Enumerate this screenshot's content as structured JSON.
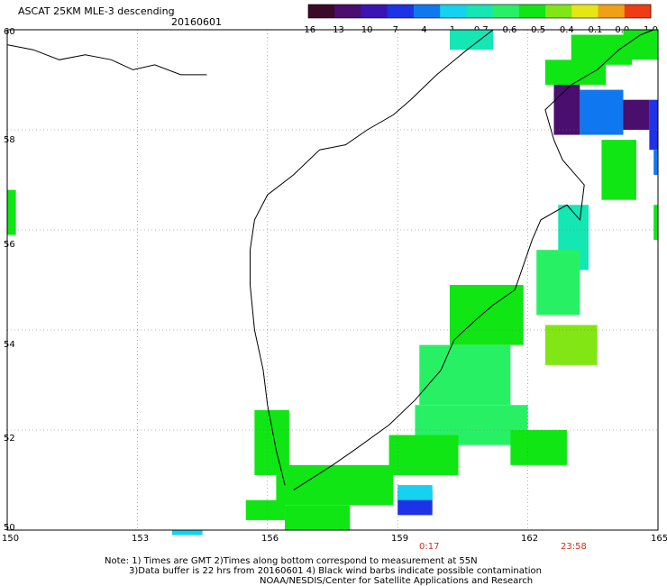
{
  "header": {
    "title": "ASCAT 25KM MLE-3 descending",
    "date": "20160601"
  },
  "colorbar": {
    "ticks": [
      "-16",
      "-13",
      "-10",
      "-7",
      "-4",
      "-1",
      "-0.7",
      "-0.6",
      "-0.5",
      "-0.4",
      "-0.1",
      "0.0",
      "1.0"
    ],
    "colors": [
      "#3c0a28",
      "#4a0e6e",
      "#3c14b4",
      "#1e32e6",
      "#0f78f0",
      "#14d2f0",
      "#14e6b4",
      "#28f064",
      "#0fe614",
      "#82e614",
      "#e6e614",
      "#f0a014",
      "#f03c14"
    ]
  },
  "map": {
    "y_ticks": [
      "60",
      "58",
      "56",
      "54",
      "52",
      "50"
    ],
    "x_ticks": [
      "150",
      "153",
      "156",
      "159",
      "162",
      "165"
    ]
  },
  "time_labels": [
    "0:17",
    "23:58"
  ],
  "footer": {
    "line1": "Note: 1) Times are GMT 2)Times along bottom correspond to measurement at 55N",
    "line2": "3)Data buffer is 22 hrs from 20160601 4) Black wind barbs indicate possible contamination",
    "line3": "NOAA/NESDIS/Center for Satellite Applications and Research"
  },
  "chart_data": {
    "type": "heatmap",
    "title": "ASCAT 25KM MLE-3 descending",
    "subtitle": "20160601",
    "xlim": [
      150,
      165
    ],
    "ylim": [
      50,
      60
    ],
    "x_ticks": [
      150,
      153,
      156,
      159,
      162,
      165
    ],
    "y_ticks": [
      50,
      52,
      54,
      56,
      58,
      60
    ],
    "grid": true,
    "colorbar_levels": [
      -16,
      -13,
      -10,
      -7,
      -4,
      -1,
      -0.7,
      -0.6,
      -0.5,
      -0.4,
      -0.1,
      0.0,
      1.0
    ],
    "cells": [
      {
        "lon0": 160.2,
        "lon1": 161.2,
        "lat0": 59.6,
        "lat1": 60.0,
        "value": -0.7
      },
      {
        "lon0": 163.0,
        "lon1": 164.4,
        "lat0": 59.3,
        "lat1": 59.9,
        "value": -0.5
      },
      {
        "lon0": 164.2,
        "lon1": 165.0,
        "lat0": 59.4,
        "lat1": 60.0,
        "value": -0.5
      },
      {
        "lon0": 162.4,
        "lon1": 163.8,
        "lat0": 58.9,
        "lat1": 59.4,
        "value": -0.5
      },
      {
        "lon0": 162.6,
        "lon1": 163.2,
        "lat0": 57.9,
        "lat1": 58.9,
        "value": -13
      },
      {
        "lon0": 163.2,
        "lon1": 164.2,
        "lat0": 57.9,
        "lat1": 58.8,
        "value": -4
      },
      {
        "lon0": 164.2,
        "lon1": 164.8,
        "lat0": 58.0,
        "lat1": 58.6,
        "value": -13
      },
      {
        "lon0": 164.8,
        "lon1": 165.0,
        "lat0": 57.6,
        "lat1": 58.6,
        "value": -7
      },
      {
        "lon0": 164.9,
        "lon1": 165.0,
        "lat0": 57.1,
        "lat1": 57.6,
        "value": -4
      },
      {
        "lon0": 163.7,
        "lon1": 164.5,
        "lat0": 56.6,
        "lat1": 57.8,
        "value": -0.5
      },
      {
        "lon0": 164.9,
        "lon1": 165.0,
        "lat0": 55.8,
        "lat1": 56.5,
        "value": -0.5
      },
      {
        "lon0": 150.0,
        "lon1": 150.2,
        "lat0": 55.9,
        "lat1": 56.8,
        "value": -0.5
      },
      {
        "lon0": 162.7,
        "lon1": 163.4,
        "lat0": 55.2,
        "lat1": 56.5,
        "value": -0.7
      },
      {
        "lon0": 162.2,
        "lon1": 163.2,
        "lat0": 54.3,
        "lat1": 55.6,
        "value": -0.6
      },
      {
        "lon0": 162.4,
        "lon1": 163.6,
        "lat0": 53.3,
        "lat1": 54.1,
        "value": -0.4
      },
      {
        "lon0": 160.2,
        "lon1": 161.9,
        "lat0": 53.7,
        "lat1": 54.9,
        "value": -0.5
      },
      {
        "lon0": 159.5,
        "lon1": 161.6,
        "lat0": 52.5,
        "lat1": 53.7,
        "value": -0.6
      },
      {
        "lon0": 159.4,
        "lon1": 162.0,
        "lat0": 51.7,
        "lat1": 52.5,
        "value": -0.6
      },
      {
        "lon0": 158.8,
        "lon1": 160.4,
        "lat0": 51.1,
        "lat1": 51.9,
        "value": -0.5
      },
      {
        "lon0": 161.6,
        "lon1": 162.9,
        "lat0": 51.3,
        "lat1": 52.0,
        "value": -0.5
      },
      {
        "lon0": 155.7,
        "lon1": 156.5,
        "lat0": 51.1,
        "lat1": 52.4,
        "value": -0.5
      },
      {
        "lon0": 156.2,
        "lon1": 158.9,
        "lat0": 50.5,
        "lat1": 51.3,
        "value": -0.5
      },
      {
        "lon0": 155.5,
        "lon1": 156.4,
        "lat0": 50.2,
        "lat1": 50.6,
        "value": -0.5
      },
      {
        "lon0": 156.4,
        "lon1": 157.9,
        "lat0": 50.0,
        "lat1": 50.5,
        "value": -0.5
      },
      {
        "lon0": 159.0,
        "lon1": 159.8,
        "lat0": 50.3,
        "lat1": 50.8,
        "value": -7
      },
      {
        "lon0": 159.0,
        "lon1": 159.8,
        "lat0": 50.6,
        "lat1": 50.9,
        "value": -1
      },
      {
        "lon0": 153.8,
        "lon1": 154.5,
        "lat0": 49.9,
        "lat1": 50.0,
        "value": -1
      }
    ]
  }
}
